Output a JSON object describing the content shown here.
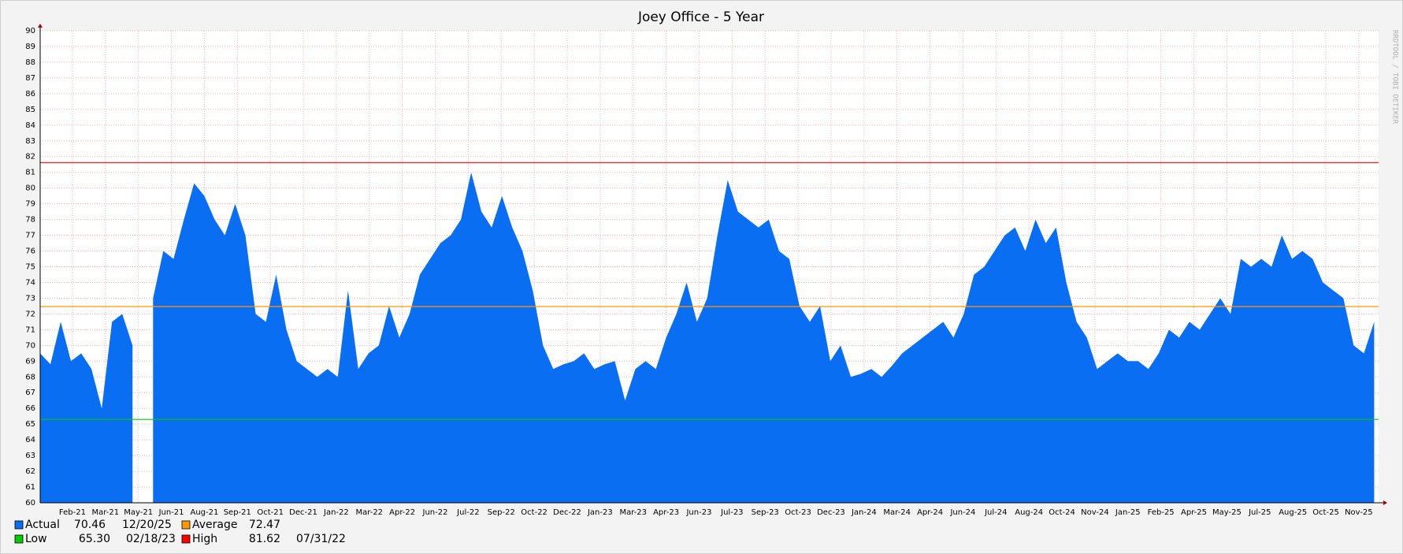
{
  "chart_data": {
    "type": "area",
    "title": "Joey Office - 5 Year",
    "watermark": "RRDTOOL / TOBI OETIKER",
    "x": [
      0,
      14,
      28,
      42,
      56,
      70,
      84,
      98,
      112,
      126,
      140,
      154,
      168,
      182,
      196,
      210,
      224,
      238,
      252,
      266,
      280,
      294,
      308,
      322,
      336,
      350,
      364,
      378,
      392,
      406,
      420,
      434,
      448,
      462,
      476,
      490,
      504,
      518,
      532,
      546,
      560,
      574,
      588,
      602,
      616,
      630,
      644,
      658,
      672,
      686,
      700,
      714,
      728,
      742,
      756,
      770,
      784,
      798,
      812,
      826,
      840,
      854,
      868,
      882,
      896,
      910,
      924,
      938,
      952,
      966,
      980,
      994,
      1008,
      1022,
      1036,
      1050,
      1064,
      1078,
      1092,
      1106,
      1120,
      1134,
      1148,
      1162,
      1176,
      1190,
      1204,
      1218,
      1232,
      1246,
      1260,
      1274,
      1288,
      1302,
      1316,
      1330,
      1344,
      1358,
      1372,
      1386,
      1400,
      1414,
      1428,
      1442,
      1456,
      1470,
      1484,
      1498,
      1512,
      1526,
      1540,
      1554,
      1568,
      1582,
      1596,
      1610,
      1624,
      1638,
      1652,
      1666,
      1680,
      1694,
      1708,
      1722,
      1736,
      1750,
      1764,
      1778,
      1792,
      1806,
      1820
    ],
    "series": [
      {
        "name": "Actual",
        "color": "#0a6ef2",
        "values": [
          69.5,
          68.8,
          71.5,
          69,
          69.5,
          68.5,
          66,
          71.5,
          72,
          70,
          null,
          73,
          76,
          75.5,
          78,
          80.3,
          79.5,
          78,
          77,
          79,
          77,
          72,
          71.5,
          74.5,
          71,
          69,
          68.5,
          68,
          68.5,
          68,
          73.5,
          68.5,
          69.5,
          70,
          72.5,
          70.5,
          72,
          74.5,
          75.5,
          76.5,
          77,
          78,
          81,
          78.5,
          77.5,
          79.5,
          77.5,
          76,
          73.5,
          70,
          68.5,
          68.8,
          69,
          69.5,
          68.5,
          68.8,
          69,
          66.5,
          68.5,
          69,
          68.5,
          70.5,
          72,
          74,
          71.5,
          73,
          77,
          80.5,
          78.5,
          78,
          77.5,
          78,
          76,
          75.5,
          72.5,
          71.5,
          72.5,
          69,
          70,
          68,
          68.2,
          68.5,
          68,
          68.7,
          69.5,
          70,
          70.5,
          71,
          71.5,
          70.5,
          72,
          74.5,
          75,
          76,
          77,
          77.5,
          76,
          78,
          76.5,
          77.5,
          74,
          71.5,
          70.5,
          68.5,
          69,
          69.5,
          69,
          69,
          68.5,
          69.5,
          71,
          70.5,
          71.5,
          71,
          72,
          73,
          72,
          75.5,
          75,
          75.5,
          75,
          77,
          75.5,
          76,
          75.5,
          74,
          73.5,
          73,
          70,
          69.5,
          71.5
        ],
        "summary": {
          "value": 70.46,
          "date": "12/20/25"
        }
      }
    ],
    "reference_lines": [
      {
        "name": "Average",
        "color": "#ff9900",
        "value": 72.47
      },
      {
        "name": "Low",
        "color": "#00cc00",
        "value": 65.3,
        "value_label": "65.30",
        "date": "02/18/23"
      },
      {
        "name": "High",
        "color": "#ff0000",
        "value": 81.62,
        "date": "07/31/22"
      }
    ],
    "xlim": [
      0,
      1826
    ],
    "xticks": [
      {
        "value": 44,
        "label": "Feb-21"
      },
      {
        "value": 89,
        "label": "Mar-21"
      },
      {
        "value": 134,
        "label": "May-21"
      },
      {
        "value": 179,
        "label": "Jun-21"
      },
      {
        "value": 224,
        "label": "Aug-21"
      },
      {
        "value": 269,
        "label": "Sep-21"
      },
      {
        "value": 314,
        "label": "Oct-21"
      },
      {
        "value": 359,
        "label": "Dec-21"
      },
      {
        "value": 404,
        "label": "Jan-22"
      },
      {
        "value": 449,
        "label": "Mar-22"
      },
      {
        "value": 494,
        "label": "Apr-22"
      },
      {
        "value": 539,
        "label": "Jun-22"
      },
      {
        "value": 584,
        "label": "Jul-22"
      },
      {
        "value": 629,
        "label": "Sep-22"
      },
      {
        "value": 674,
        "label": "Oct-22"
      },
      {
        "value": 719,
        "label": "Dec-22"
      },
      {
        "value": 764,
        "label": "Jan-23"
      },
      {
        "value": 809,
        "label": "Mar-23"
      },
      {
        "value": 854,
        "label": "Apr-23"
      },
      {
        "value": 899,
        "label": "Jun-23"
      },
      {
        "value": 944,
        "label": "Jul-23"
      },
      {
        "value": 989,
        "label": "Sep-23"
      },
      {
        "value": 1034,
        "label": "Oct-23"
      },
      {
        "value": 1079,
        "label": "Dec-23"
      },
      {
        "value": 1124,
        "label": "Jan-24"
      },
      {
        "value": 1169,
        "label": "Mar-24"
      },
      {
        "value": 1214,
        "label": "Apr-24"
      },
      {
        "value": 1259,
        "label": "Jun-24"
      },
      {
        "value": 1304,
        "label": "Jul-24"
      },
      {
        "value": 1349,
        "label": "Aug-24"
      },
      {
        "value": 1394,
        "label": "Oct-24"
      },
      {
        "value": 1439,
        "label": "Nov-24"
      },
      {
        "value": 1484,
        "label": "Jan-25"
      },
      {
        "value": 1529,
        "label": "Feb-25"
      },
      {
        "value": 1574,
        "label": "Apr-25"
      },
      {
        "value": 1619,
        "label": "May-25"
      },
      {
        "value": 1664,
        "label": "Jul-25"
      },
      {
        "value": 1709,
        "label": "Aug-25"
      },
      {
        "value": 1754,
        "label": "Oct-25"
      },
      {
        "value": 1799,
        "label": "Nov-25"
      }
    ],
    "ylim": [
      60,
      90
    ],
    "yticks": [
      60,
      61,
      62,
      63,
      64,
      65,
      66,
      67,
      68,
      69,
      70,
      71,
      72,
      73,
      74,
      75,
      76,
      77,
      78,
      79,
      80,
      81,
      82,
      83,
      84,
      85,
      86,
      87,
      88,
      89,
      90
    ],
    "grid": true
  }
}
